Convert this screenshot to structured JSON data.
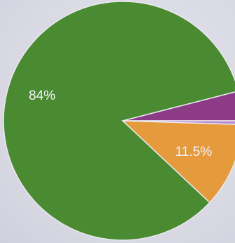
{
  "chart_data": {
    "type": "pie",
    "slices": [
      {
        "value": 84.0,
        "label": "84%",
        "color": "#4a8a31"
      },
      {
        "value": 11.5,
        "label": "11.5%",
        "color": "#e59a3c"
      },
      {
        "value": 0.5,
        "label": "",
        "color": "#b78ad1"
      },
      {
        "value": 4.0,
        "label": "",
        "color": "#8c3b86"
      }
    ],
    "title": "",
    "legend": "none",
    "background": "#dcdde6"
  }
}
